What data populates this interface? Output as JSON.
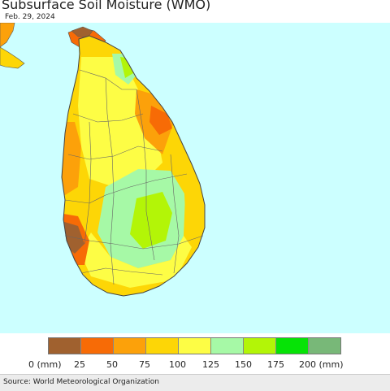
{
  "title": "Subsurface Soil Moisture (WMO)",
  "date": "Feb. 29, 2024",
  "source": "Source: World Meteorological Organization",
  "legend": {
    "labels": [
      "0 (mm)",
      "25",
      "50",
      "75",
      "100",
      "125",
      "150",
      "175",
      "200 (mm)"
    ],
    "colors": [
      "#a0612f",
      "#f76b06",
      "#fca10a",
      "#fdd606",
      "#fdfd45",
      "#a6f9a6",
      "#b3f507",
      "#06e306",
      "#78b878"
    ]
  },
  "map": {
    "background_color": "#ccffff",
    "region": "Sri Lanka"
  }
}
